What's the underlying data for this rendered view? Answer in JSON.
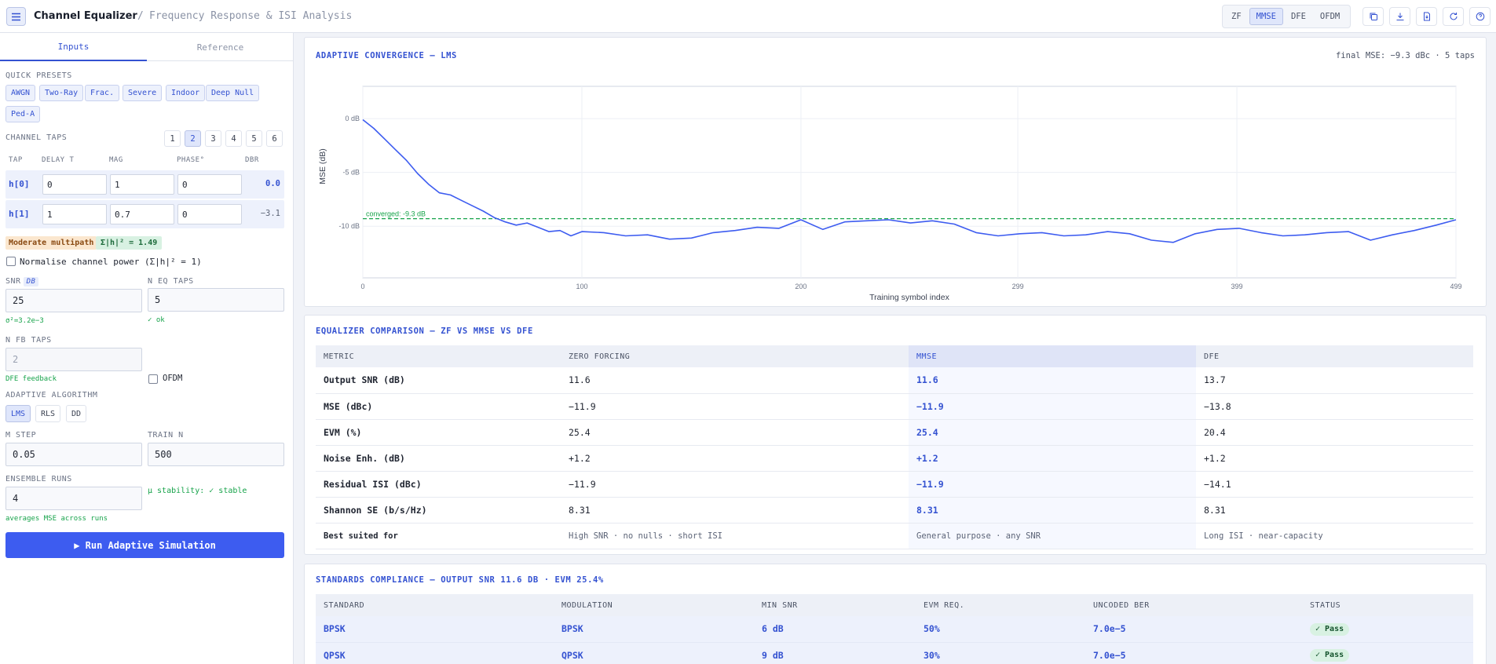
{
  "header": {
    "title": "Channel Equalizer",
    "separator": "/",
    "subtitle": "Frequency Response & ISI Analysis",
    "modes": [
      "ZF",
      "MMSE",
      "DFE",
      "OFDM"
    ],
    "active_mode": "MMSE",
    "toolbar_icons": [
      "copy-icon",
      "download-icon",
      "export-file-icon",
      "refresh-icon",
      "help-icon"
    ]
  },
  "sidebar": {
    "tabs": [
      "Inputs",
      "Reference"
    ],
    "presets_label": "QUICK PRESETS",
    "presets": [
      "AWGN",
      "Two-Ray",
      "Frac.",
      "Severe",
      "Indoor",
      "Deep Null",
      "Ped-A"
    ],
    "taps_label": "CHANNEL TAPS",
    "tap_counts": [
      "1",
      "2",
      "3",
      "4",
      "5",
      "6"
    ],
    "tap_count_selected": "2",
    "tap_columns": [
      "TAP",
      "DELAY T",
      "MAG",
      "PHASE°",
      "DBR"
    ],
    "taps": [
      {
        "name": "h[0]",
        "delay": "0",
        "mag": "1",
        "phase": "0",
        "dbr": "0.0"
      },
      {
        "name": "h[1]",
        "delay": "1",
        "mag": "0.7",
        "phase": "0",
        "dbr": "−3.1"
      }
    ],
    "multipath_badge": "Moderate multipath",
    "power_badge": "Σ|h|² = 1.49",
    "normalise_label": "Normalise channel power (Σ|h|² = 1)",
    "snr_label": "SNR",
    "snr_unit": "DB",
    "snr_value": "25",
    "snr_hint": "σ²=3.2e−3",
    "neq_label": "N EQ TAPS",
    "neq_value": "5",
    "neq_hint": "✓ ok",
    "nfb_label": "N FB TAPS",
    "nfb_value": "2",
    "nfb_hint": "DFE feedback",
    "ofdm_label": "OFDM",
    "algo_label": "ADAPTIVE ALGORITHM",
    "algos": [
      "LMS",
      "RLS",
      "DD"
    ],
    "algo_selected": "LMS",
    "mu_label": "M STEP",
    "mu_value": "0.05",
    "train_label": "TRAIN N",
    "train_value": "500",
    "ensemble_label": "ENSEMBLE RUNS",
    "ensemble_value": "4",
    "ensemble_hint": "averages MSE across runs",
    "stability_hint": "μ stability: ✓ stable",
    "run_label": "▶ Run Adaptive Simulation"
  },
  "convergence": {
    "title": "ADAPTIVE CONVERGENCE — LMS",
    "meta": "final MSE: −9.3 dBc · 5 taps",
    "converged_label": "converged: -9.3 dB"
  },
  "chart_data": {
    "type": "line",
    "title": "ADAPTIVE CONVERGENCE — LMS",
    "xlabel": "Training symbol index",
    "ylabel": "MSE (dB)",
    "x_ticks": [
      "0",
      "100",
      "200",
      "299",
      "399",
      "499"
    ],
    "y_ticks": [
      "0 dB",
      "-5 dB",
      "-10 dB"
    ],
    "xlim": [
      0,
      499
    ],
    "ylim": [
      -14.8,
      3
    ],
    "grid": true,
    "reference_line": {
      "y": -9.3,
      "label": "converged: -9.3 dB",
      "color": "#16a34a"
    },
    "series": [
      {
        "color": "#3d5cf0",
        "x": [
          0,
          5,
          10,
          15,
          20,
          25,
          30,
          35,
          40,
          45,
          50,
          55,
          60,
          65,
          70,
          75,
          80,
          85,
          90,
          95,
          100,
          110,
          120,
          130,
          140,
          150,
          160,
          170,
          180,
          190,
          200,
          210,
          220,
          230,
          240,
          250,
          260,
          270,
          280,
          290,
          300,
          310,
          320,
          330,
          340,
          350,
          360,
          370,
          380,
          390,
          400,
          410,
          420,
          430,
          440,
          450,
          460,
          470,
          480,
          490,
          499
        ],
        "y": [
          -0.1,
          -0.9,
          -1.9,
          -2.9,
          -3.9,
          -5.1,
          -6.1,
          -6.9,
          -7.1,
          -7.6,
          -8.1,
          -8.6,
          -9.2,
          -9.6,
          -9.9,
          -9.7,
          -10.1,
          -10.5,
          -10.4,
          -10.9,
          -10.5,
          -10.6,
          -10.9,
          -10.8,
          -11.2,
          -11.1,
          -10.6,
          -10.4,
          -10.1,
          -10.2,
          -9.4,
          -10.3,
          -9.6,
          -9.5,
          -9.4,
          -9.7,
          -9.5,
          -9.8,
          -10.6,
          -10.9,
          -10.7,
          -10.6,
          -10.9,
          -10.8,
          -10.5,
          -10.7,
          -11.3,
          -11.5,
          -10.7,
          -10.3,
          -10.2,
          -10.6,
          -10.9,
          -10.8,
          -10.6,
          -10.5,
          -11.3,
          -10.8,
          -10.4,
          -9.9,
          -9.4
        ]
      }
    ]
  },
  "comparison": {
    "title": "EQUALIZER COMPARISON — ZF VS MMSE VS DFE",
    "columns": [
      "METRIC",
      "ZERO FORCING",
      "MMSE",
      "DFE"
    ],
    "rows": [
      [
        "Output SNR (dB)",
        "11.6",
        "11.6",
        "13.7"
      ],
      [
        "MSE (dBc)",
        "−11.9",
        "−11.9",
        "−13.8"
      ],
      [
        "EVM (%)",
        "25.4",
        "25.4",
        "20.4"
      ],
      [
        "Noise Enh. (dB)",
        "+1.2",
        "+1.2",
        "+1.2"
      ],
      [
        "Residual ISI (dBc)",
        "−11.9",
        "−11.9",
        "−14.1"
      ],
      [
        "Shannon SE (b/s/Hz)",
        "8.31",
        "8.31",
        "8.31"
      ],
      [
        "Best suited for",
        "High SNR · no nulls · short ISI",
        "General purpose · any SNR",
        "Long ISI · near-capacity"
      ]
    ]
  },
  "standards": {
    "title": "STANDARDS COMPLIANCE — OUTPUT SNR 11.6 DB · EVM 25.4%",
    "columns": [
      "STANDARD",
      "MODULATION",
      "MIN SNR",
      "EVM REQ.",
      "UNCODED BER",
      "STATUS"
    ],
    "rows": [
      [
        "BPSK",
        "BPSK",
        "6 dB",
        "50%",
        "7.0e−5",
        "✓ Pass"
      ],
      [
        "QPSK",
        "QPSK",
        "9 dB",
        "30%",
        "7.0e−5",
        "✓ Pass"
      ]
    ]
  }
}
